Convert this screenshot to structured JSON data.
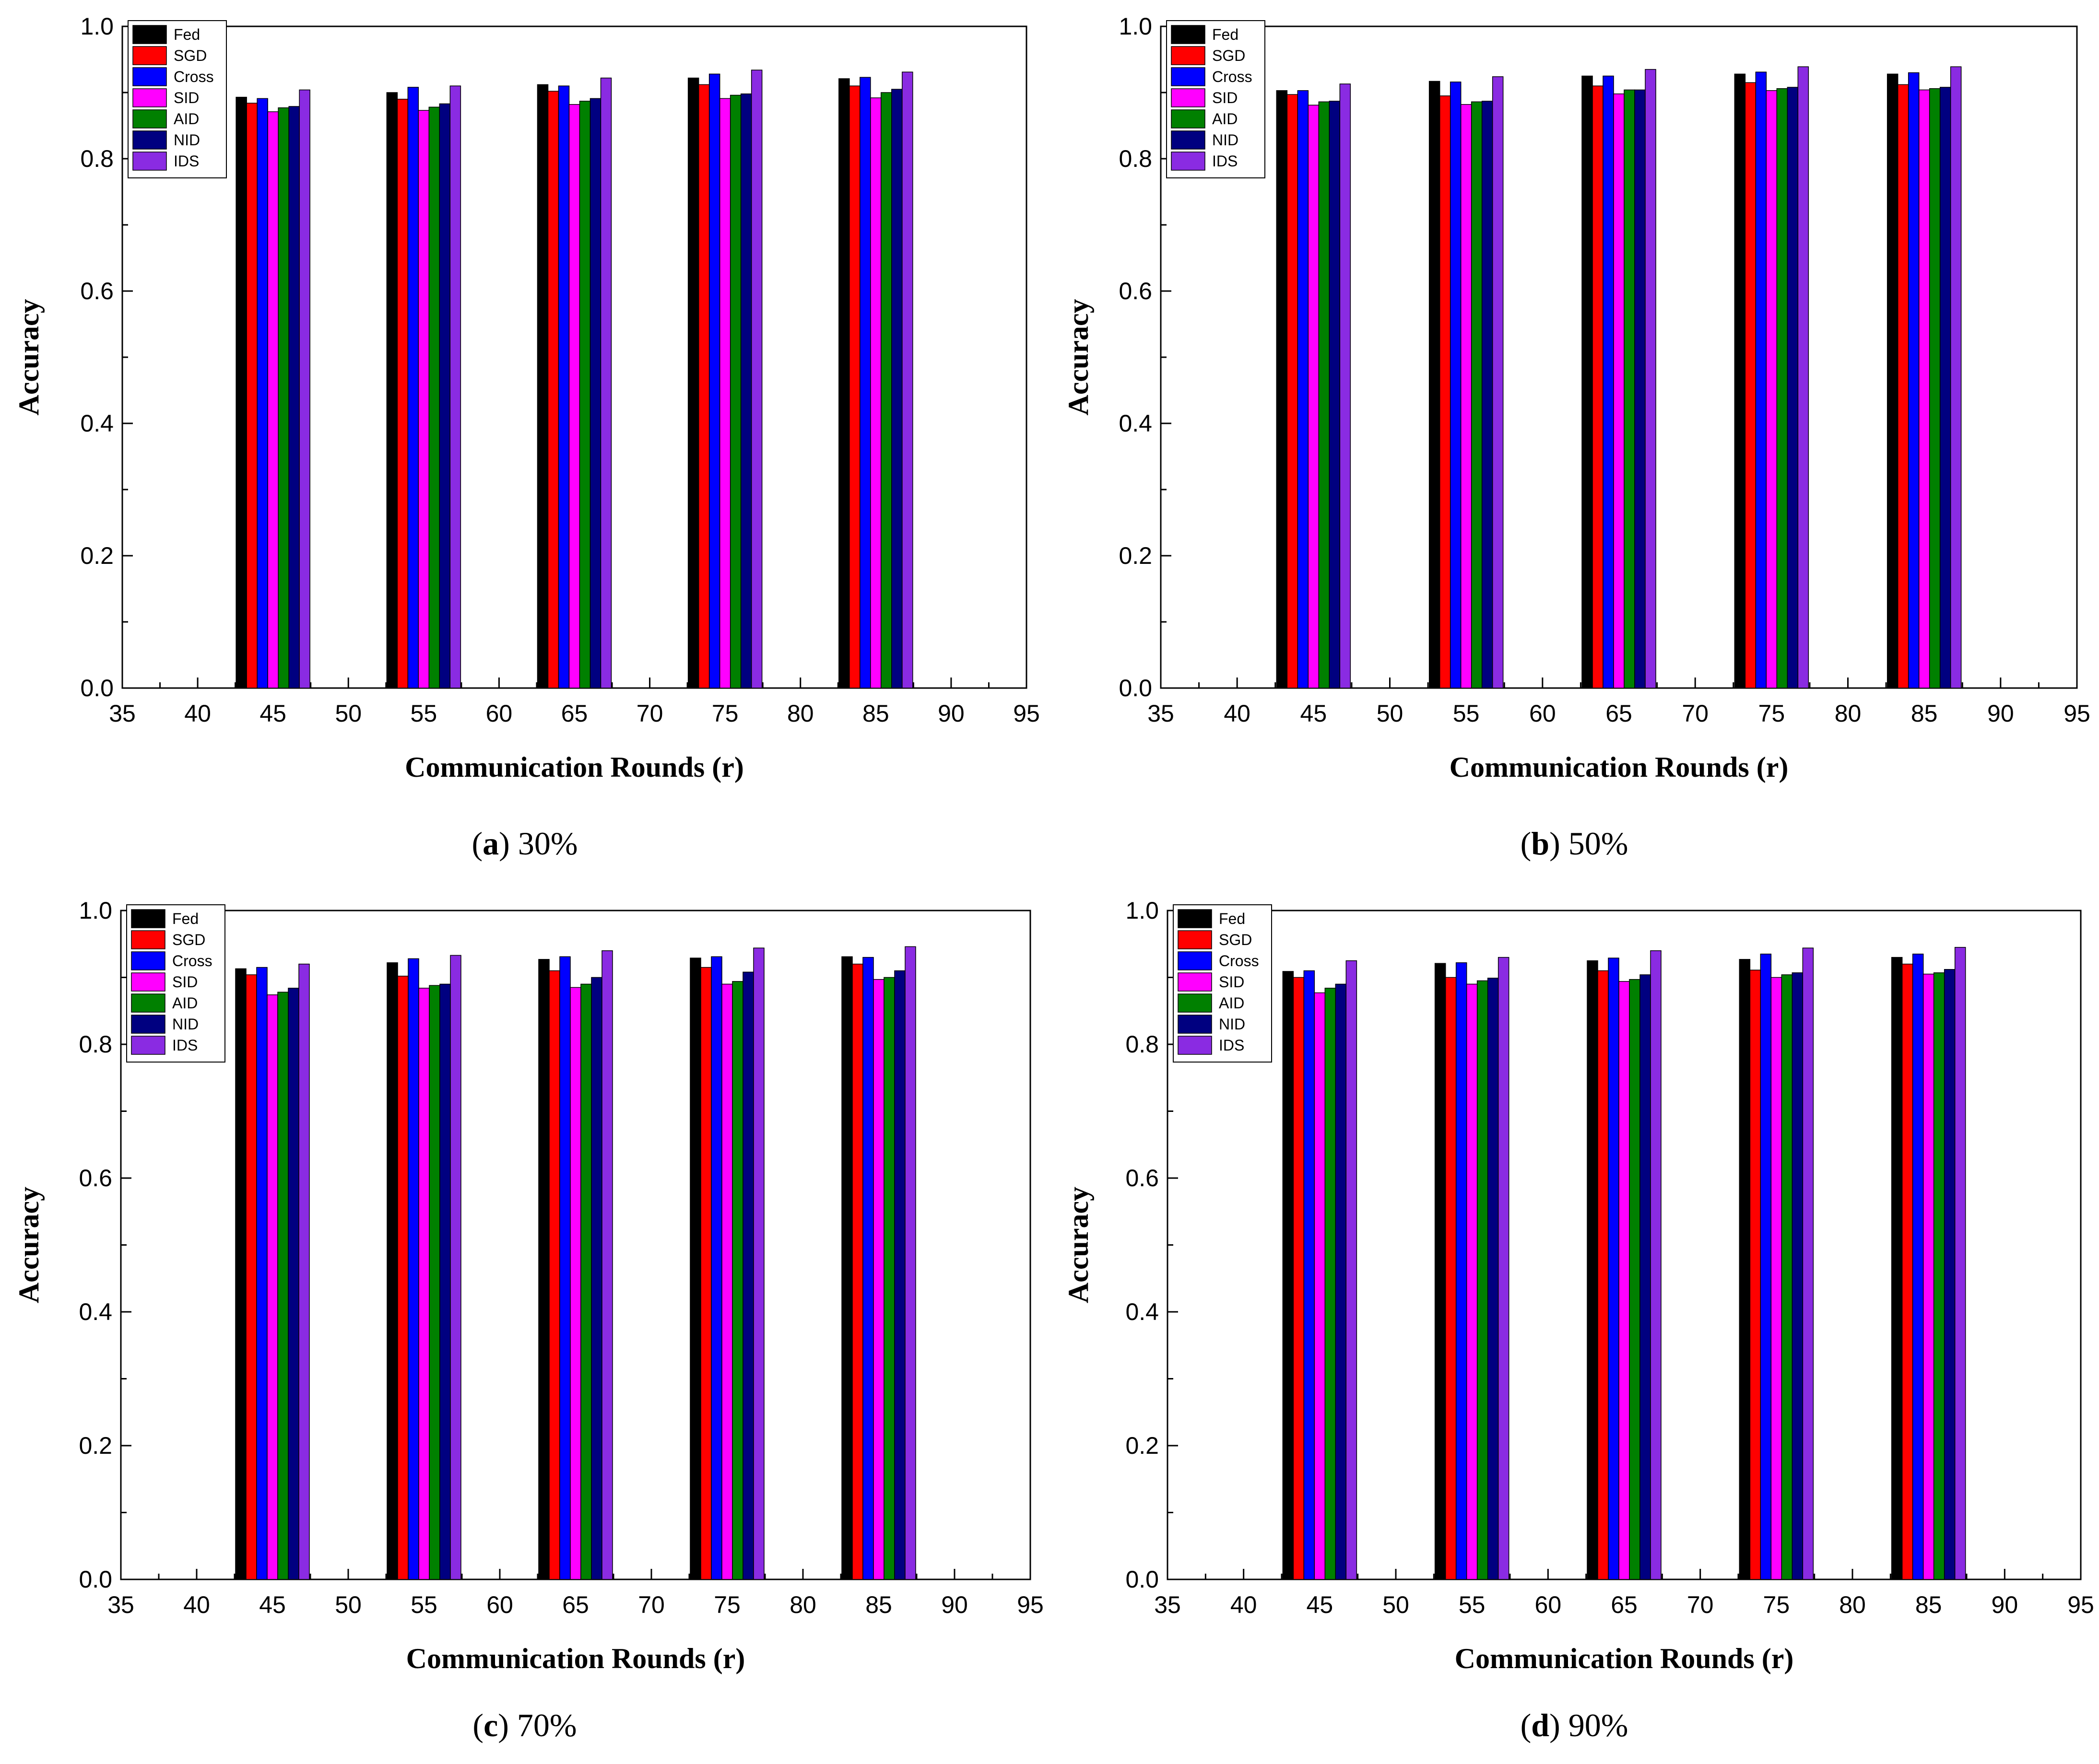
{
  "colors": {
    "Fed": "#000000",
    "SGD": "#ff0000",
    "Cross": "#0000ff",
    "SID": "#ff00ff",
    "AID": "#008000",
    "NID": "#000080",
    "IDS": "#8a2be2"
  },
  "chart_data": [
    {
      "panel_id": "a",
      "type": "bar",
      "caption_letter": "a",
      "caption_text": "30%",
      "xlabel": "Communication Rounds (r)",
      "ylabel": "Accuracy",
      "xlim": [
        35,
        95
      ],
      "ylim": [
        0.0,
        1.0
      ],
      "x_ticks": [
        "35",
        "40",
        "45",
        "50",
        "55",
        "60",
        "65",
        "70",
        "75",
        "80",
        "85",
        "90",
        "95"
      ],
      "y_ticks": [
        "0.0",
        "0.2",
        "0.4",
        "0.6",
        "0.8",
        "1.0"
      ],
      "categories": [
        45,
        55,
        65,
        75,
        85
      ],
      "legend_position": "top-left",
      "series": [
        {
          "name": "Fed",
          "values": [
            0.893,
            0.9,
            0.912,
            0.922,
            0.921
          ]
        },
        {
          "name": "SGD",
          "values": [
            0.884,
            0.89,
            0.902,
            0.912,
            0.91
          ]
        },
        {
          "name": "Cross",
          "values": [
            0.891,
            0.908,
            0.91,
            0.928,
            0.923
          ]
        },
        {
          "name": "SID",
          "values": [
            0.871,
            0.873,
            0.882,
            0.891,
            0.892
          ]
        },
        {
          "name": "AID",
          "values": [
            0.877,
            0.878,
            0.887,
            0.896,
            0.9
          ]
        },
        {
          "name": "NID",
          "values": [
            0.879,
            0.883,
            0.891,
            0.898,
            0.905
          ]
        },
        {
          "name": "IDS",
          "values": [
            0.904,
            0.91,
            0.922,
            0.934,
            0.931
          ]
        }
      ]
    },
    {
      "panel_id": "b",
      "type": "bar",
      "caption_letter": "b",
      "caption_text": "50%",
      "xlabel": "Communication Rounds (r)",
      "ylabel": "Accuracy",
      "xlim": [
        35,
        95
      ],
      "ylim": [
        0.0,
        1.0
      ],
      "x_ticks": [
        "35",
        "40",
        "45",
        "50",
        "55",
        "60",
        "65",
        "70",
        "75",
        "80",
        "85",
        "90",
        "95"
      ],
      "y_ticks": [
        "0.0",
        "0.2",
        "0.4",
        "0.6",
        "0.8",
        "1.0"
      ],
      "categories": [
        45,
        55,
        65,
        75,
        85
      ],
      "legend_position": "top-left",
      "series": [
        {
          "name": "Fed",
          "values": [
            0.903,
            0.917,
            0.925,
            0.928,
            0.928
          ]
        },
        {
          "name": "SGD",
          "values": [
            0.897,
            0.895,
            0.91,
            0.915,
            0.912
          ]
        },
        {
          "name": "Cross",
          "values": [
            0.903,
            0.916,
            0.925,
            0.931,
            0.93
          ]
        },
        {
          "name": "SID",
          "values": [
            0.881,
            0.882,
            0.898,
            0.903,
            0.904
          ]
        },
        {
          "name": "AID",
          "values": [
            0.886,
            0.886,
            0.904,
            0.906,
            0.906
          ]
        },
        {
          "name": "NID",
          "values": [
            0.887,
            0.887,
            0.904,
            0.908,
            0.908
          ]
        },
        {
          "name": "IDS",
          "values": [
            0.913,
            0.924,
            0.935,
            0.939,
            0.939
          ]
        }
      ]
    },
    {
      "panel_id": "c",
      "type": "bar",
      "caption_letter": "c",
      "caption_text": "70%",
      "xlabel": "Communication Rounds (r)",
      "ylabel": "Accuracy",
      "xlim": [
        35,
        95
      ],
      "ylim": [
        0.0,
        1.0
      ],
      "x_ticks": [
        "35",
        "40",
        "45",
        "50",
        "55",
        "60",
        "65",
        "70",
        "75",
        "80",
        "85",
        "90",
        "95"
      ],
      "y_ticks": [
        "0.0",
        "0.2",
        "0.4",
        "0.6",
        "0.8",
        "1.0"
      ],
      "categories": [
        45,
        55,
        65,
        75,
        85
      ],
      "legend_position": "top-left",
      "series": [
        {
          "name": "Fed",
          "values": [
            0.913,
            0.922,
            0.927,
            0.929,
            0.931
          ]
        },
        {
          "name": "SGD",
          "values": [
            0.904,
            0.902,
            0.91,
            0.915,
            0.92
          ]
        },
        {
          "name": "Cross",
          "values": [
            0.915,
            0.928,
            0.931,
            0.931,
            0.93
          ]
        },
        {
          "name": "SID",
          "values": [
            0.874,
            0.884,
            0.885,
            0.89,
            0.897
          ]
        },
        {
          "name": "AID",
          "values": [
            0.878,
            0.888,
            0.89,
            0.894,
            0.9
          ]
        },
        {
          "name": "NID",
          "values": [
            0.884,
            0.89,
            0.9,
            0.908,
            0.91
          ]
        },
        {
          "name": "IDS",
          "values": [
            0.92,
            0.933,
            0.94,
            0.944,
            0.946
          ]
        }
      ]
    },
    {
      "panel_id": "d",
      "type": "bar",
      "caption_letter": "d",
      "caption_text": "90%",
      "xlabel": "Communication Rounds (r)",
      "ylabel": "Accuracy",
      "xlim": [
        35,
        95
      ],
      "ylim": [
        0.0,
        1.0
      ],
      "x_ticks": [
        "35",
        "40",
        "45",
        "50",
        "55",
        "60",
        "65",
        "70",
        "75",
        "80",
        "85",
        "90",
        "95"
      ],
      "y_ticks": [
        "0.0",
        "0.2",
        "0.4",
        "0.6",
        "0.8",
        "1.0"
      ],
      "categories": [
        45,
        55,
        65,
        75,
        85
      ],
      "legend_position": "top-left",
      "series": [
        {
          "name": "Fed",
          "values": [
            0.909,
            0.921,
            0.925,
            0.927,
            0.93
          ]
        },
        {
          "name": "SGD",
          "values": [
            0.9,
            0.9,
            0.91,
            0.911,
            0.92
          ]
        },
        {
          "name": "Cross",
          "values": [
            0.91,
            0.922,
            0.929,
            0.935,
            0.935
          ]
        },
        {
          "name": "SID",
          "values": [
            0.877,
            0.89,
            0.894,
            0.9,
            0.905
          ]
        },
        {
          "name": "AID",
          "values": [
            0.884,
            0.895,
            0.897,
            0.904,
            0.907
          ]
        },
        {
          "name": "NID",
          "values": [
            0.89,
            0.899,
            0.904,
            0.907,
            0.912
          ]
        },
        {
          "name": "IDS",
          "values": [
            0.925,
            0.93,
            0.94,
            0.944,
            0.945
          ]
        }
      ]
    }
  ]
}
